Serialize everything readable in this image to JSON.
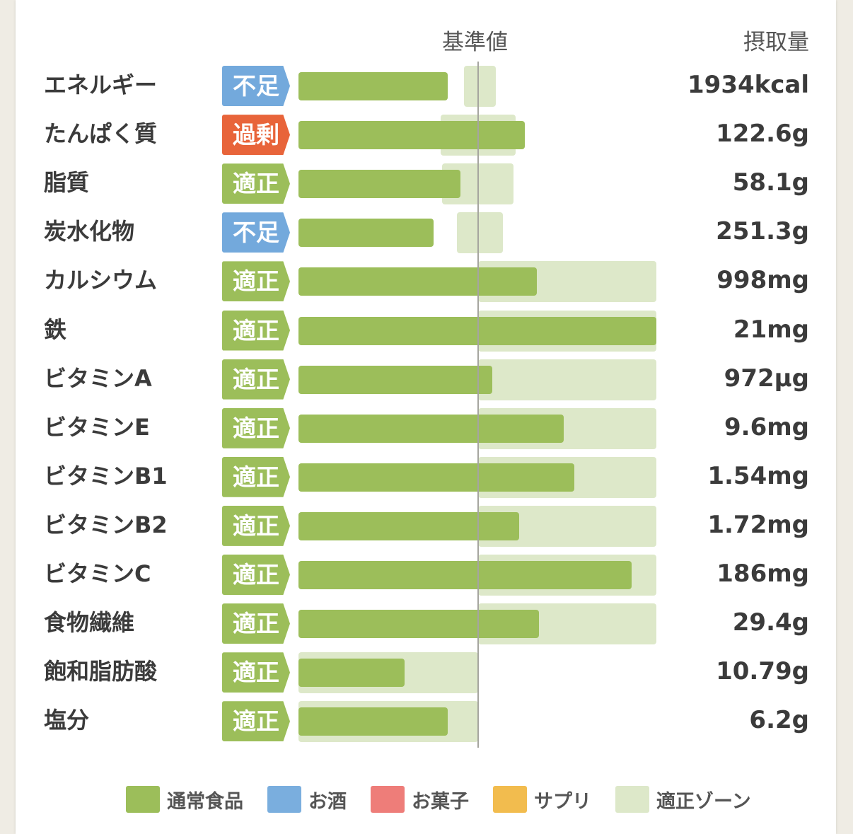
{
  "header": {
    "reference_label": "基準値",
    "intake_label": "摂取量"
  },
  "colors": {
    "food": "#9cbe5a",
    "zone": "#dde8c9",
    "status_low": "#73a9dc",
    "status_high": "#e8643a",
    "status_ok": "#9cbe5a"
  },
  "chart_data": {
    "type": "bar",
    "orientation": "horizontal",
    "reference_axis_label": "基準値",
    "value_column_label": "摂取量",
    "categories": [
      "エネルギー",
      "たんぱく質",
      "脂質",
      "炭水化物",
      "カルシウム",
      "鉄",
      "ビタミンA",
      "ビタミンE",
      "ビタミンB1",
      "ビタミンB2",
      "ビタミンC",
      "食物繊維",
      "飽和脂肪酸",
      "塩分"
    ],
    "rows": [
      {
        "name": "エネルギー",
        "status": "不足",
        "status_type": "low",
        "value_text": "1934kcal",
        "value": 1934,
        "unit": "kcal",
        "bar_pct": 83,
        "zone_pct": [
          92,
          110
        ]
      },
      {
        "name": "たんぱく質",
        "status": "過剰",
        "status_type": "high",
        "value_text": "122.6g",
        "value": 122.6,
        "unit": "g",
        "bar_pct": 126,
        "zone_pct": [
          79,
          121
        ]
      },
      {
        "name": "脂質",
        "status": "適正",
        "status_type": "ok",
        "value_text": "58.1g",
        "value": 58.1,
        "unit": "g",
        "bar_pct": 90,
        "zone_pct": [
          80,
          120
        ]
      },
      {
        "name": "炭水化物",
        "status": "不足",
        "status_type": "low",
        "value_text": "251.3g",
        "value": 251.3,
        "unit": "g",
        "bar_pct": 75,
        "zone_pct": [
          88,
          114
        ]
      },
      {
        "name": "カルシウム",
        "status": "適正",
        "status_type": "ok",
        "value_text": "998mg",
        "value": 998,
        "unit": "mg",
        "bar_pct": 133,
        "zone_pct": [
          100,
          200
        ]
      },
      {
        "name": "鉄",
        "status": "適正",
        "status_type": "ok",
        "value_text": "21mg",
        "value": 21,
        "unit": "mg",
        "bar_pct": 200,
        "zone_pct": [
          100,
          200
        ]
      },
      {
        "name": "ビタミンA",
        "status": "適正",
        "status_type": "ok",
        "value_text": "972µg",
        "value": 972,
        "unit": "µg",
        "bar_pct": 108,
        "zone_pct": [
          100,
          200
        ]
      },
      {
        "name": "ビタミンE",
        "status": "適正",
        "status_type": "ok",
        "value_text": "9.6mg",
        "value": 9.6,
        "unit": "mg",
        "bar_pct": 148,
        "zone_pct": [
          100,
          200
        ]
      },
      {
        "name": "ビタミンB1",
        "status": "適正",
        "status_type": "ok",
        "value_text": "1.54mg",
        "value": 1.54,
        "unit": "mg",
        "bar_pct": 154,
        "zone_pct": [
          100,
          200
        ]
      },
      {
        "name": "ビタミンB2",
        "status": "適正",
        "status_type": "ok",
        "value_text": "1.72mg",
        "value": 1.72,
        "unit": "mg",
        "bar_pct": 123,
        "zone_pct": [
          100,
          200
        ]
      },
      {
        "name": "ビタミンC",
        "status": "適正",
        "status_type": "ok",
        "value_text": "186mg",
        "value": 186,
        "unit": "mg",
        "bar_pct": 186,
        "zone_pct": [
          100,
          200
        ]
      },
      {
        "name": "食物繊維",
        "status": "適正",
        "status_type": "ok",
        "value_text": "29.4g",
        "value": 29.4,
        "unit": "g",
        "bar_pct": 134,
        "zone_pct": [
          100,
          200
        ]
      },
      {
        "name": "飽和脂肪酸",
        "status": "適正",
        "status_type": "ok",
        "value_text": "10.79g",
        "value": 10.79,
        "unit": "g",
        "bar_pct": 59,
        "zone_pct": [
          0,
          100
        ]
      },
      {
        "name": "塩分",
        "status": "適正",
        "status_type": "ok",
        "value_text": "6.2g",
        "value": 6.2,
        "unit": "g",
        "bar_pct": 83,
        "zone_pct": [
          0,
          100
        ]
      }
    ],
    "legend": [
      {
        "label": "通常食品",
        "color": "#9cbe5a"
      },
      {
        "label": "お酒",
        "color": "#7aaede"
      },
      {
        "label": "お菓子",
        "color": "#ee7d79"
      },
      {
        "label": "サプリ",
        "color": "#f2bc4e"
      },
      {
        "label": "適正ゾーン",
        "color": "#dde8c9"
      }
    ]
  }
}
